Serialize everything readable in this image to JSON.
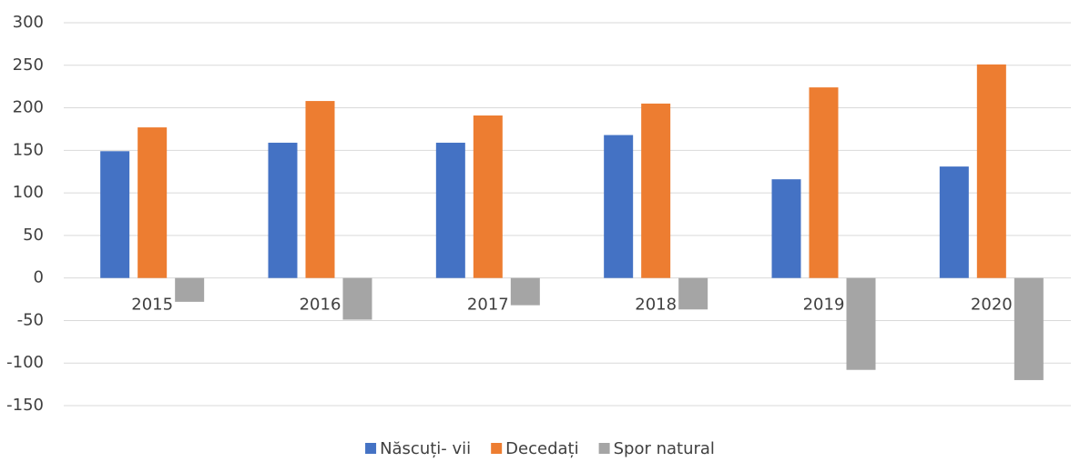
{
  "chart_data": {
    "type": "bar",
    "categories": [
      "2015",
      "2016",
      "2017",
      "2018",
      "2019",
      "2020"
    ],
    "series": [
      {
        "name": "Născuți- vii",
        "color": "#4472c4",
        "values": [
          149,
          159,
          159,
          168,
          116,
          131
        ]
      },
      {
        "name": "Decedați",
        "color": "#ed7d31",
        "values": [
          177,
          208,
          191,
          205,
          224,
          251
        ]
      },
      {
        "name": "Spor natural",
        "color": "#a5a5a5",
        "values": [
          -28,
          -49,
          -32,
          -37,
          -108,
          -120
        ]
      }
    ],
    "ylim": [
      -150,
      300
    ],
    "yticks": [
      -150,
      -100,
      -50,
      0,
      50,
      100,
      150,
      200,
      250,
      300
    ],
    "grid": true,
    "legend": "bottom"
  }
}
